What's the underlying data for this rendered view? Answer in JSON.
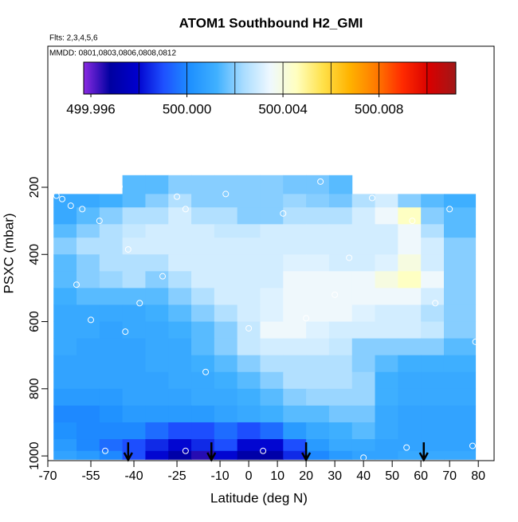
{
  "chart_data": {
    "type": "heatmap",
    "title": "ATOM1 Southbound H2_GMI",
    "subtitle": "Flts: 2,3,4,5,6",
    "note": "MMDD: 0801,0803,0806,0808,0812",
    "xlabel": "Latitude (deg N)",
    "ylabel": "PSXC (mbar)",
    "xlim": [
      -70,
      85.5
    ],
    "ylim": [
      1014,
      -220
    ],
    "xticks": [
      -70,
      -55,
      -40,
      -25,
      -10,
      0,
      10,
      20,
      30,
      40,
      50,
      60,
      70,
      80
    ],
    "yticks": [
      200,
      400,
      600,
      800,
      1000
    ],
    "x_edges": [
      -68,
      -60,
      -52,
      -44,
      -36,
      -28,
      -20,
      -12,
      -4,
      4,
      12,
      20,
      28,
      36,
      44,
      52,
      60,
      68,
      79
    ],
    "y_edges": [
      164,
      220,
      260,
      310,
      350,
      400,
      450,
      500,
      550,
      600,
      650,
      700,
      750,
      800,
      850,
      900,
      950,
      985,
      1010
    ],
    "values": [
      [
        null,
        null,
        null,
        500.0015,
        500.0015,
        500.002,
        500.002,
        500.002,
        500.002,
        500.002,
        500.0018,
        500.0018,
        500.0015,
        null,
        null,
        null,
        null,
        null
      ],
      [
        500.001,
        500.001,
        500.0012,
        500.0015,
        500.002,
        500.0025,
        500.002,
        500.002,
        500.002,
        500.002,
        500.0022,
        500.002,
        500.0018,
        500.0025,
        500.003,
        500.002,
        500.0015,
        500.0012
      ],
      [
        500.001,
        500.0015,
        500.002,
        500.0025,
        500.0025,
        500.003,
        500.0025,
        500.0025,
        500.002,
        500.002,
        500.0025,
        500.0025,
        500.0025,
        500.003,
        500.0035,
        500.0045,
        500.002,
        500.0015
      ],
      [
        500.0015,
        500.002,
        500.0025,
        500.0028,
        500.003,
        500.003,
        500.003,
        500.0028,
        500.0028,
        500.003,
        500.003,
        500.003,
        500.003,
        500.003,
        500.003,
        500.0035,
        500.0025,
        500.0015
      ],
      [
        500.002,
        500.0025,
        500.0025,
        500.003,
        500.003,
        500.003,
        500.003,
        500.003,
        500.003,
        500.003,
        500.003,
        500.003,
        500.003,
        500.003,
        500.003,
        500.0035,
        500.003,
        500.002
      ],
      [
        500.0015,
        500.002,
        500.0025,
        500.0025,
        500.0025,
        500.003,
        500.003,
        500.003,
        500.003,
        500.003,
        500.0032,
        500.0032,
        500.003,
        500.003,
        500.0032,
        500.004,
        500.003,
        500.002
      ],
      [
        500.0015,
        500.002,
        500.0022,
        500.0025,
        500.002,
        500.0025,
        500.003,
        500.003,
        500.003,
        500.003,
        500.0035,
        500.0035,
        500.0035,
        500.0035,
        500.004,
        500.0045,
        500.0035,
        500.002
      ],
      [
        500.0012,
        500.0015,
        500.0015,
        500.0015,
        500.0015,
        500.002,
        500.0025,
        500.003,
        500.003,
        500.0032,
        500.0035,
        500.0035,
        500.0035,
        500.0035,
        500.0035,
        500.0035,
        500.003,
        500.002
      ],
      [
        500.001,
        500.001,
        500.001,
        500.001,
        500.0012,
        500.0015,
        500.002,
        500.0025,
        500.003,
        500.0032,
        500.0035,
        500.0035,
        500.0035,
        500.0032,
        500.003,
        500.003,
        500.0025,
        500.002
      ],
      [
        500.001,
        500.001,
        500.0008,
        500.001,
        500.001,
        500.0012,
        500.0015,
        500.002,
        500.0028,
        500.0035,
        500.0035,
        500.0032,
        500.003,
        500.003,
        500.003,
        500.003,
        500.0028,
        500.002
      ],
      [
        500.001,
        500.0008,
        500.0008,
        500.0008,
        500.001,
        500.001,
        500.0015,
        500.002,
        500.0028,
        500.003,
        500.003,
        500.003,
        500.0028,
        500.002,
        500.002,
        500.002,
        500.002,
        500.0015
      ],
      [
        500.0008,
        500.0008,
        500.0008,
        500.0008,
        500.001,
        500.001,
        500.0012,
        500.0015,
        500.002,
        500.0025,
        500.0025,
        500.0025,
        500.0025,
        500.002,
        500.0015,
        500.0012,
        500.0012,
        500.0012
      ],
      [
        500.0008,
        500.0008,
        500.0008,
        500.0008,
        500.0008,
        500.001,
        500.001,
        500.0012,
        500.0015,
        500.002,
        500.0025,
        500.0025,
        500.0025,
        500.0022,
        500.0012,
        500.001,
        500.001,
        500.001
      ],
      [
        500.0005,
        500.0005,
        500.0005,
        500.0008,
        500.0008,
        500.0008,
        500.001,
        500.001,
        500.0012,
        500.0015,
        500.002,
        500.0022,
        500.0022,
        500.0022,
        500.0012,
        500.001,
        500.001,
        500.001
      ],
      [
        500,
        500,
        500.0002,
        500.0005,
        500.0005,
        500.0005,
        500.0005,
        500.0008,
        500.001,
        500.0012,
        500.0015,
        500.0015,
        500.0018,
        500.0018,
        500.001,
        500.0008,
        500.0008,
        500.0008
      ],
      [
        500.0002,
        500,
        500,
        500,
        499.9995,
        499.999,
        499.999,
        499.9995,
        499.999,
        499.9995,
        500.0005,
        500.001,
        500.0012,
        500.0015,
        500.001,
        500.0008,
        500.0008,
        500.0008
      ],
      [
        500.0005,
        500,
        499.9995,
        499.999,
        499.9985,
        499.998,
        499.9985,
        499.999,
        499.998,
        499.998,
        499.999,
        500.0005,
        500.001,
        500.001,
        500.0008,
        500.0008,
        500.0008,
        500.0008
      ],
      [
        500.0008,
        500.0005,
        500,
        499.999,
        499.998,
        499.997,
        499.9965,
        499.998,
        499.997,
        499.997,
        499.9985,
        500,
        500.0005,
        500.0008,
        500.0008,
        500.001,
        500.001,
        500.001
      ]
    ],
    "points": {
      "x": [
        -67,
        -65,
        -62,
        -58,
        -52,
        -45,
        -42,
        -38,
        -30,
        -25,
        -22,
        -8,
        12,
        25,
        43,
        57,
        -43,
        -55,
        0,
        20,
        35,
        65,
        70,
        -60,
        5,
        -22,
        40,
        -50,
        79,
        78,
        55,
        -15,
        30
      ],
      "y": [
        225,
        235,
        255,
        265,
        300,
        198,
        385,
        545,
        465,
        228,
        265,
        220,
        278,
        183,
        232,
        300,
        630,
        595,
        620,
        590,
        410,
        545,
        265,
        490,
        985,
        985,
        1005,
        985,
        660,
        970,
        975,
        750,
        520
      ]
    },
    "arrows_lat": [
      -42,
      -13,
      20,
      61
    ],
    "colorbar_lim": [
      499.9957,
      500.0112
    ],
    "colorbar_ticks": [
      499.996,
      {
        "value": 500,
        "label": "500.000"
      },
      500.004,
      500.008
    ],
    "colorbar_breaks": [
      499.998,
      500,
      500.002,
      500.004,
      500.006,
      500.008,
      500.01
    ],
    "colors": [
      "#8a2be2",
      "#0000a0",
      "#0000cd",
      "#1e50ff",
      "#1e90ff",
      "#3fb0ff",
      "#a8dcff",
      "#eef8ff",
      "#ffffc0",
      "#ffe14a",
      "#ffb300",
      "#ff7a00",
      "#ff2a00",
      "#d80000",
      "#a01818"
    ]
  }
}
